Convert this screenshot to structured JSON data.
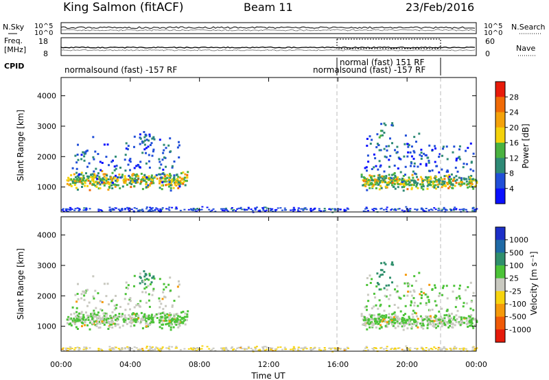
{
  "header": {
    "station": "King Salmon (fitACF)",
    "beam": "Beam 11",
    "date": "23/Feb/2016"
  },
  "noise_panel": {
    "left_label": "N.Sky",
    "right_label": "N.Search",
    "tick_top": "10^5",
    "tick_bottom": "10^0"
  },
  "freq_panel": {
    "left_label_1": "Freq.",
    "left_label_2": "[MHz]",
    "left_ticks": [
      "18",
      "8"
    ],
    "right_label": "Nave",
    "right_ticks": [
      "60",
      "0"
    ]
  },
  "cpid": {
    "label": "CPID",
    "segments": [
      {
        "text": "normalsound (fast) -157 RF",
        "start_hour": 0.0
      },
      {
        "text": "normal (fast) 151 RF",
        "start_hour": 16.0
      },
      {
        "text": "normalsound (fast) -157 RF",
        "start_hour": 22.0
      }
    ]
  },
  "power_panel": {
    "ylabel": "Slant Range [km]",
    "yticks": [
      "1000",
      "2000",
      "3000",
      "4000"
    ],
    "colorbar_label": "Power [dB]",
    "colorbar_ticks": [
      "4",
      "8",
      "12",
      "16",
      "20",
      "24",
      "28"
    ],
    "colors": [
      "#0a10ff",
      "#214fd8",
      "#2e8a76",
      "#4ab240",
      "#f4d20b",
      "#f4a20a",
      "#f06a06",
      "#e81b0a"
    ]
  },
  "velocity_panel": {
    "ylabel": "Slant Range [km]",
    "yticks": [
      "1000",
      "2000",
      "3000",
      "4000"
    ],
    "colorbar_label": "Velocity [m s⁻¹]",
    "colorbar_ticks": [
      "1000",
      "500",
      "100",
      "25",
      "-25",
      "-100",
      "-500",
      "-1000"
    ],
    "colors": [
      "#1c2fc8",
      "#1f6aa6",
      "#2f8f6c",
      "#4cc338",
      "#c9c9c0",
      "#f7d40e",
      "#f59a0a",
      "#f05a07",
      "#e51a0a"
    ]
  },
  "xaxis": {
    "label": "Time UT",
    "ticks": [
      "00:00",
      "04:00",
      "08:00",
      "12:00",
      "16:00",
      "20:00",
      "00:00"
    ]
  },
  "chart_data": {
    "type": "heatmap",
    "title": "King Salmon (fitACF)",
    "xlabel": "Time UT",
    "ylabel": "Slant Range [km]",
    "x_range_hours": [
      0,
      24
    ],
    "ylim_km": [
      180,
      4600
    ],
    "mode_change_hours": [
      16,
      22
    ],
    "grid": false,
    "scatter_regions": [
      {
        "name": "band",
        "t0": 0.3,
        "t1": 7.3,
        "r_center": 1250,
        "r_spread": 180,
        "power_db": 14,
        "velocity": 25
      },
      {
        "name": "cloud",
        "t0": 0.6,
        "t1": 6.8,
        "r_center": 1900,
        "r_spread": 600,
        "power_db": 6,
        "velocity": 20
      },
      {
        "name": "patch",
        "t0": 4.5,
        "t1": 5.3,
        "r_center": 2650,
        "r_spread": 180,
        "power_db": 8,
        "velocity": 150
      },
      {
        "name": "band",
        "t0": 17.3,
        "t1": 24.0,
        "r_center": 1200,
        "r_spread": 160,
        "power_db": 13,
        "velocity": 25
      },
      {
        "name": "cloud",
        "t0": 17.5,
        "t1": 23.8,
        "r_center": 1900,
        "r_spread": 550,
        "power_db": 6,
        "velocity": 30
      },
      {
        "name": "plume",
        "t0": 18.2,
        "t1": 19.2,
        "r_center": 2750,
        "r_spread": 400,
        "power_db": 9,
        "velocity": 250
      },
      {
        "name": "ground",
        "t0": 0.0,
        "t1": 24.0,
        "r_center": 280,
        "r_spread": 60,
        "power_db": 5,
        "velocity": -20
      }
    ]
  }
}
